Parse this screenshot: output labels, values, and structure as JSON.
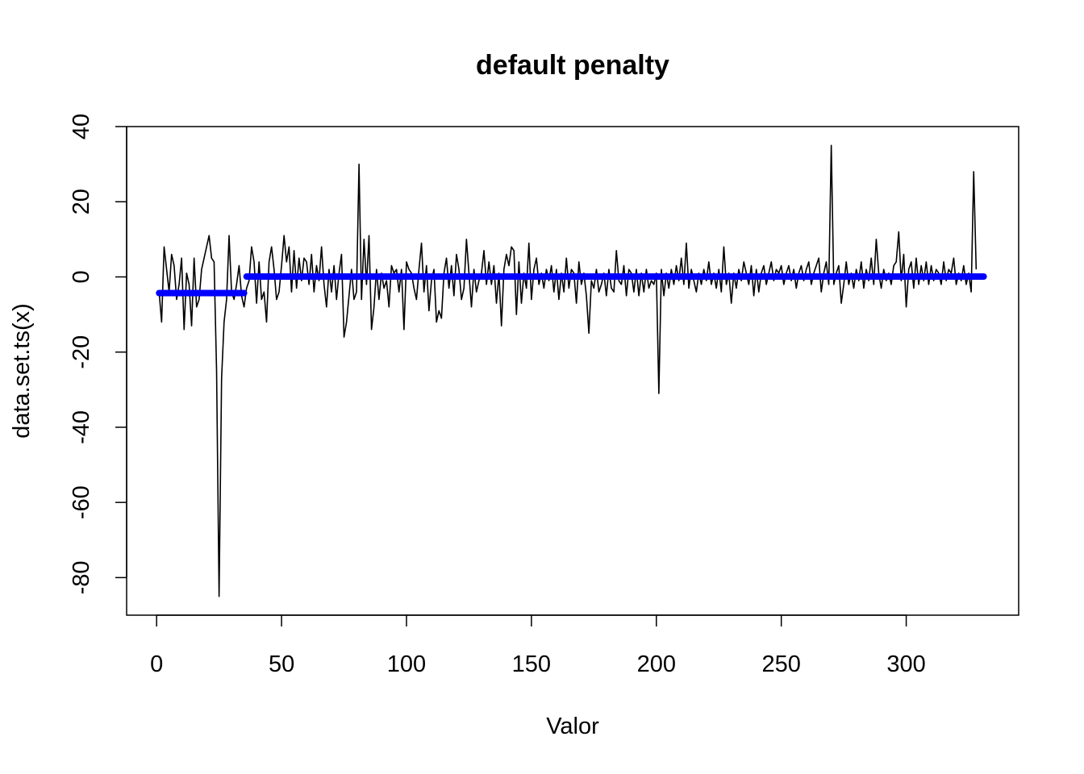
{
  "chart_data": {
    "type": "line",
    "title": "default penalty",
    "xlabel": "Valor",
    "ylabel": "data.set.ts(x)",
    "xlim": [
      -12,
      345
    ],
    "ylim": [
      -90,
      40
    ],
    "x_ticks": [
      0,
      50,
      100,
      150,
      200,
      250,
      300
    ],
    "y_ticks": [
      -80,
      -60,
      -40,
      -20,
      0,
      20,
      40
    ],
    "grid": false,
    "legend": "none",
    "series": [
      {
        "role": "data",
        "color": "#000000",
        "x_start": 1,
        "values": [
          -4,
          -12,
          8,
          2,
          -4,
          6,
          3,
          -6,
          -2,
          5,
          -14,
          1,
          -2,
          -13,
          5,
          -8,
          -6,
          2,
          5,
          8,
          11,
          5,
          4,
          -25,
          -85,
          -27,
          -12,
          -6,
          11,
          -4,
          -6,
          -2,
          3,
          -5,
          -8,
          -3,
          -1,
          8,
          4,
          -7,
          4,
          -6,
          -4,
          -12,
          4,
          8,
          2,
          -6,
          -4,
          3,
          11,
          4,
          8,
          -4,
          7,
          -3,
          5,
          -1,
          5,
          4,
          -2,
          6,
          -4,
          3,
          -1,
          8,
          -2,
          -8,
          2,
          -4,
          3,
          -6,
          1,
          6,
          -16,
          -12,
          -5,
          2,
          -6,
          -4,
          30,
          -6,
          10,
          -2,
          11,
          -14,
          -8,
          2,
          -6,
          1,
          -3,
          -1,
          -8,
          3,
          1,
          2,
          -4,
          2,
          -14,
          4,
          2,
          1,
          -3,
          -6,
          2,
          9,
          -4,
          3,
          -9,
          -1,
          2,
          -12,
          -9,
          -11,
          1,
          5,
          -3,
          3,
          -5,
          6,
          2,
          -6,
          -3,
          10,
          1,
          -8,
          2,
          -4,
          -1,
          1,
          7,
          -2,
          4,
          -2,
          3,
          -7,
          1,
          -13,
          2,
          6,
          3,
          8,
          7,
          -10,
          4,
          -7,
          1,
          -3,
          9,
          -6,
          2,
          5,
          -2,
          1,
          -3,
          2,
          -1,
          3,
          -4,
          2,
          -6,
          1,
          -4,
          5,
          -3,
          2,
          1,
          -7,
          4,
          -2,
          1,
          -5,
          -15,
          -1,
          -3,
          2,
          -4,
          -2,
          1,
          -5,
          2,
          -3,
          -4,
          7,
          -1,
          -2,
          3,
          -5,
          2,
          1,
          -4,
          2,
          -5,
          1,
          -4,
          2,
          -3,
          -1,
          -2,
          1,
          -31,
          2,
          -5,
          1,
          -3,
          2,
          -2,
          3,
          -1,
          5,
          -2,
          9,
          -3,
          2,
          -1,
          -4,
          1,
          -2,
          2,
          -1,
          4,
          -2,
          1,
          -3,
          2,
          -4,
          8,
          -2,
          1,
          -7,
          1,
          -3,
          2,
          -1,
          4,
          1,
          -2,
          3,
          -5,
          2,
          -4,
          1,
          3,
          -2,
          1,
          4,
          -1,
          2,
          1,
          3,
          -2,
          1,
          3,
          -1,
          2,
          -3,
          1,
          3,
          -1,
          2,
          4,
          -2,
          1,
          3,
          5,
          -4,
          1,
          4,
          -2,
          35,
          -2,
          1,
          3,
          -7,
          -2,
          4,
          -2,
          1,
          -3,
          2,
          -1,
          4,
          -3,
          2,
          -1,
          5,
          -2,
          10,
          1,
          -3,
          2,
          -1,
          1,
          -2,
          3,
          4,
          12,
          -1,
          6,
          -8,
          2,
          4,
          -3,
          5,
          -2,
          3,
          -1,
          4,
          -2,
          3,
          -1,
          2,
          1,
          -2,
          4,
          -1,
          2,
          1,
          5,
          -2,
          1,
          -1,
          3,
          -2,
          1,
          -4,
          28,
          2
        ]
      },
      {
        "role": "segment-mean",
        "color": "#0000ff",
        "segments": [
          {
            "x0": 1,
            "x1": 35,
            "y": -4.3
          },
          {
            "x0": 36,
            "x1": 331,
            "y": 0.1
          }
        ]
      }
    ]
  }
}
